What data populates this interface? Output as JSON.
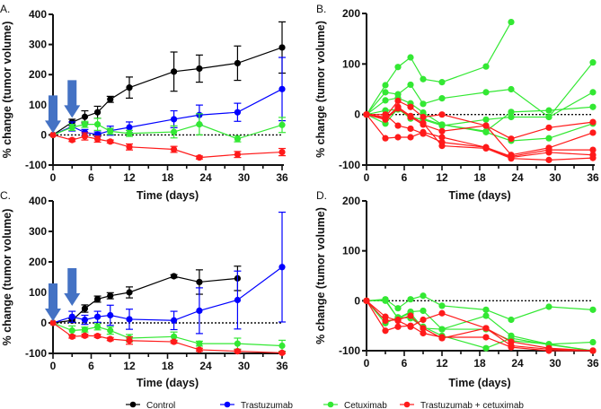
{
  "chart_data": [
    {
      "panel": "A.",
      "type": "line",
      "xlabel": "Time (days)",
      "ylabel": "% change (tumor volume)",
      "xlim": [
        0,
        36
      ],
      "ylim": [
        -100,
        400
      ],
      "xticks": [
        0,
        6,
        12,
        18,
        24,
        30,
        36
      ],
      "yticks": [
        -100,
        0,
        100,
        200,
        300,
        400
      ],
      "treatment_arrows_days": [
        0,
        3
      ],
      "x": [
        0,
        3,
        5,
        7,
        9,
        12,
        19,
        23,
        29,
        36
      ],
      "series": [
        {
          "name": "Control",
          "color": "#000000",
          "values": [
            0,
            42,
            60,
            75,
            118,
            157,
            210,
            220,
            238,
            290
          ],
          "error": [
            0,
            10,
            20,
            20,
            10,
            35,
            65,
            45,
            57,
            85
          ]
        },
        {
          "name": "Trastuzumab",
          "color": "#0000ff",
          "values": [
            0,
            28,
            8,
            2,
            14,
            25,
            52,
            66,
            75,
            152
          ],
          "error": [
            0,
            15,
            10,
            8,
            15,
            18,
            28,
            33,
            30,
            105
          ]
        },
        {
          "name": "Cetuximab",
          "color": "#33e833",
          "values": [
            0,
            25,
            35,
            35,
            12,
            5,
            10,
            35,
            -13,
            33
          ],
          "error": [
            0,
            10,
            10,
            20,
            10,
            10,
            20,
            35,
            10,
            25
          ]
        },
        {
          "name": "Trastuzumab + cetuximab",
          "color": "#ff1a1a",
          "values": [
            0,
            -17,
            -5,
            -14,
            -22,
            -40,
            -48,
            -75,
            -65,
            -57
          ],
          "error": [
            0,
            5,
            12,
            10,
            5,
            10,
            10,
            5,
            10,
            12
          ]
        }
      ]
    },
    {
      "panel": "B.",
      "type": "line",
      "xlabel": "Time (days)",
      "ylabel": "% change (tumor volume)",
      "xlim": [
        0,
        36
      ],
      "ylim": [
        -100,
        200
      ],
      "xticks": [
        0,
        6,
        12,
        18,
        24,
        30,
        36
      ],
      "yticks": [
        -100,
        0,
        100,
        200
      ],
      "x": [
        0,
        3,
        5,
        7,
        9,
        12,
        19,
        23,
        29,
        36
      ],
      "series": [
        {
          "name": "Cetuximab",
          "color": "#33e833",
          "values": [
            0,
            58,
            94,
            113,
            70,
            64,
            95,
            183,
            null,
            null
          ]
        },
        {
          "name": "Cetuximab",
          "color": "#33e833",
          "values": [
            0,
            44,
            40,
            59,
            21,
            32,
            44,
            50,
            -5,
            103
          ]
        },
        {
          "name": "Cetuximab",
          "color": "#33e833",
          "values": [
            0,
            28,
            33,
            22,
            4,
            -20,
            -33,
            5,
            8,
            15
          ]
        },
        {
          "name": "Cetuximab",
          "color": "#33e833",
          "values": [
            0,
            8,
            10,
            -5,
            -10,
            -22,
            -10,
            -5,
            -5,
            44
          ]
        },
        {
          "name": "Cetuximab",
          "color": "#33e833",
          "values": [
            0,
            -18,
            12,
            -8,
            -8,
            -20,
            -35,
            -52,
            -47,
            -18
          ]
        },
        {
          "name": "Trastuzumab + cetuximab",
          "color": "#ff1a1a",
          "values": [
            0,
            -5,
            27,
            15,
            -5,
            0,
            -22,
            -48,
            -26,
            -15
          ]
        },
        {
          "name": "Trastuzumab + cetuximab",
          "color": "#ff1a1a",
          "values": [
            0,
            -10,
            12,
            -5,
            -20,
            -33,
            -22,
            -80,
            -66,
            -36
          ]
        },
        {
          "name": "Trastuzumab + cetuximab",
          "color": "#ff1a1a",
          "values": [
            0,
            -47,
            -45,
            -45,
            -35,
            -45,
            -65,
            -83,
            -70,
            -70
          ]
        },
        {
          "name": "Trastuzumab + cetuximab",
          "color": "#ff1a1a",
          "values": [
            0,
            0,
            -22,
            -28,
            -38,
            -55,
            -65,
            -85,
            -75,
            -80
          ]
        },
        {
          "name": "Trastuzumab + cetuximab",
          "color": "#ff1a1a",
          "values": [
            0,
            -8,
            15,
            -3,
            -17,
            -62,
            -67,
            -87,
            -90,
            -86
          ]
        }
      ]
    },
    {
      "panel": "C.",
      "type": "line",
      "xlabel": "Time (days)",
      "ylabel": "% change (tumor volume)",
      "xlim": [
        0,
        36
      ],
      "ylim": [
        -100,
        400
      ],
      "xticks": [
        0,
        6,
        12,
        18,
        24,
        30,
        36
      ],
      "yticks": [
        -100,
        0,
        100,
        200,
        300,
        400
      ],
      "treatment_arrows_days": [
        0,
        3
      ],
      "x": [
        0,
        3,
        5,
        7,
        9,
        12,
        19,
        23,
        29,
        36
      ],
      "series": [
        {
          "name": "Control",
          "color": "#000000",
          "values": [
            0,
            8,
            47,
            78,
            89,
            100,
            153,
            134,
            146,
            null
          ],
          "error": [
            0,
            5,
            12,
            10,
            10,
            18,
            5,
            40,
            40,
            null
          ]
        },
        {
          "name": "Trastuzumab",
          "color": "#0000ff",
          "values": [
            0,
            20,
            10,
            20,
            25,
            12,
            8,
            40,
            75,
            183
          ],
          "error": [
            0,
            18,
            15,
            18,
            33,
            33,
            30,
            75,
            95,
            180
          ]
        },
        {
          "name": "Cetuximab",
          "color": "#33e833",
          "values": [
            0,
            -25,
            -22,
            -13,
            -25,
            -50,
            -45,
            -68,
            -68,
            -75
          ],
          "error": [
            0,
            15,
            8,
            10,
            12,
            12,
            15,
            8,
            18,
            18
          ]
        },
        {
          "name": "Trastuzumab + cetuximab",
          "color": "#ff1a1a",
          "values": [
            0,
            -45,
            -42,
            -43,
            -53,
            -58,
            -62,
            -88,
            -93,
            -98
          ],
          "error": [
            0,
            5,
            5,
            5,
            5,
            12,
            5,
            5,
            5,
            3
          ]
        }
      ]
    },
    {
      "panel": "D.",
      "type": "line",
      "xlabel": "Time (days)",
      "ylabel": "% change (tumor volume)",
      "xlim": [
        0,
        36
      ],
      "ylim": [
        -100,
        200
      ],
      "xticks": [
        0,
        6,
        12,
        18,
        24,
        30,
        36
      ],
      "yticks": [
        -100,
        0,
        100,
        200
      ],
      "x": [
        0,
        3,
        5,
        7,
        9,
        12,
        19,
        23,
        29,
        36
      ],
      "series": [
        {
          "name": "Cetuximab",
          "color": "#33e833",
          "values": [
            0,
            3,
            -15,
            3,
            10,
            -10,
            -18,
            -38,
            -12,
            -18
          ]
        },
        {
          "name": "Cetuximab",
          "color": "#33e833",
          "values": [
            0,
            0,
            -35,
            -22,
            -20,
            -57,
            -30,
            -70,
            -87,
            -83
          ]
        },
        {
          "name": "Cetuximab",
          "color": "#33e833",
          "values": [
            0,
            -45,
            -33,
            -35,
            -52,
            -70,
            -95,
            -75,
            -88,
            -100
          ]
        },
        {
          "name": "Cetuximab",
          "color": "#33e833",
          "values": [
            0,
            2,
            -35,
            -25,
            -55,
            -57,
            -57,
            -80,
            -87,
            -100
          ]
        },
        {
          "name": "Trastuzumab + cetuximab",
          "color": "#ff1a1a",
          "values": [
            0,
            -32,
            -40,
            -52,
            -38,
            -25,
            -55,
            -82,
            -95,
            -100
          ]
        },
        {
          "name": "Trastuzumab + cetuximab",
          "color": "#ff1a1a",
          "values": [
            0,
            -60,
            -52,
            -50,
            -65,
            -73,
            -73,
            -93,
            -100,
            -100
          ]
        },
        {
          "name": "Trastuzumab + cetuximab",
          "color": "#ff1a1a",
          "values": [
            0,
            -40,
            -38,
            -30,
            -55,
            -75,
            -55,
            -90,
            -97,
            -100
          ]
        }
      ]
    }
  ],
  "legend": [
    {
      "label": "Control",
      "color": "#000000"
    },
    {
      "label": "Trastuzumab",
      "color": "#0000ff"
    },
    {
      "label": "Cetuximab",
      "color": "#33e833"
    },
    {
      "label": "Trastuzumab + cetuximab",
      "color": "#ff1a1a"
    }
  ],
  "arrow_color": "#4472c4"
}
